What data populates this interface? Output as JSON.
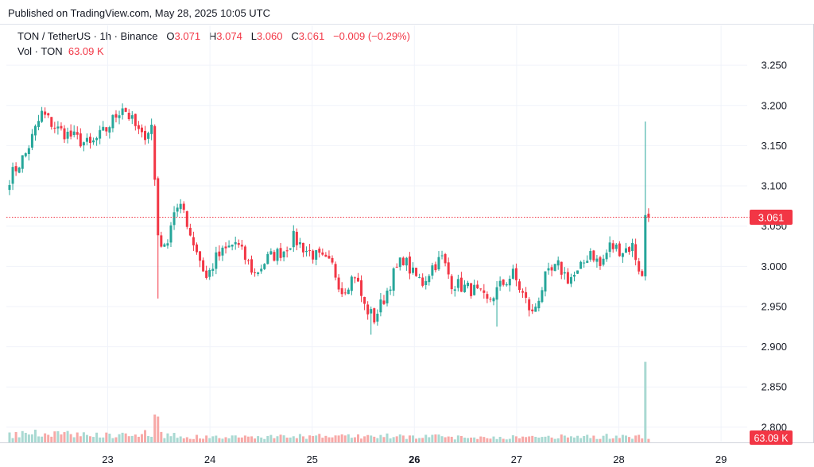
{
  "header": {
    "published": "Published on TradingView.com, May 28, 2025 10:05 UTC"
  },
  "legend": {
    "symbol": "TON / TetherUS · 1h · Binance",
    "o_label": "O",
    "o_value": "3.071",
    "h_label": "H",
    "h_value": "3.074",
    "l_label": "L",
    "l_value": "3.060",
    "c_label": "C",
    "c_value": "3.061",
    "change": "−0.009 (−0.29%)",
    "vol_label": "Vol · TON",
    "vol_value": "63.09 K"
  },
  "colors": {
    "up": "#26a69a",
    "down": "#f23645",
    "vol_up": "#a9d9d2",
    "vol_down": "#f7a9a7",
    "grid": "#f0f3fa",
    "text": "#131722"
  },
  "chart_data": {
    "type": "candlestick",
    "x_ticks": [
      {
        "label": "23",
        "day": 23
      },
      {
        "label": "24",
        "day": 24
      },
      {
        "label": "25",
        "day": 25
      },
      {
        "label": "26",
        "day": 26,
        "bold": true
      },
      {
        "label": "27",
        "day": 27
      },
      {
        "label": "28",
        "day": 28
      },
      {
        "label": "29",
        "day": 29
      }
    ],
    "y_ticks": [
      "3.250",
      "3.200",
      "3.150",
      "3.100",
      "3.050",
      "3.000",
      "2.950",
      "2.900",
      "2.850",
      "2.800"
    ],
    "ylim": [
      2.79,
      3.262
    ],
    "last_price": "3.061",
    "last_volume": "63.09 K",
    "close_anchors": [
      [
        0,
        3.11
      ],
      [
        5,
        3.14
      ],
      [
        10,
        3.19
      ],
      [
        15,
        3.17
      ],
      [
        20,
        3.16
      ],
      [
        25,
        3.15
      ],
      [
        30,
        3.17
      ],
      [
        35,
        3.2
      ],
      [
        38,
        3.18
      ],
      [
        41,
        3.16
      ],
      [
        44,
        3.175
      ],
      [
        46,
        3.04
      ],
      [
        48,
        3.02
      ],
      [
        51,
        3.07
      ],
      [
        54,
        3.07
      ],
      [
        56,
        3.04
      ],
      [
        58,
        3.02
      ],
      [
        61,
        2.985
      ],
      [
        64,
        3.01
      ],
      [
        67,
        3.02
      ],
      [
        70,
        3.03
      ],
      [
        73,
        3.01
      ],
      [
        76,
        2.99
      ],
      [
        80,
        3.01
      ],
      [
        85,
        3.02
      ],
      [
        88,
        3.035
      ],
      [
        92,
        3.02
      ],
      [
        96,
        3.01
      ],
      [
        100,
        3.0
      ],
      [
        103,
        2.97
      ],
      [
        107,
        2.99
      ],
      [
        110,
        2.95
      ],
      [
        113,
        2.935
      ],
      [
        116,
        2.96
      ],
      [
        119,
        2.99
      ],
      [
        122,
        3.01
      ],
      [
        125,
        2.99
      ],
      [
        128,
        2.98
      ],
      [
        131,
        3.0
      ],
      [
        134,
        3.01
      ],
      [
        137,
        2.98
      ],
      [
        140,
        2.975
      ],
      [
        144,
        2.97
      ],
      [
        148,
        2.955
      ],
      [
        152,
        2.975
      ],
      [
        156,
        2.99
      ],
      [
        159,
        2.965
      ],
      [
        162,
        2.94
      ],
      [
        166,
        2.985
      ],
      [
        170,
        3.0
      ],
      [
        173,
        2.985
      ],
      [
        176,
        2.99
      ],
      [
        180,
        3.02
      ],
      [
        183,
        3.0
      ],
      [
        186,
        3.025
      ],
      [
        190,
        3.02
      ],
      [
        193,
        3.025
      ],
      [
        196,
        2.985
      ],
      [
        197,
        3.065
      ],
      [
        198,
        3.061
      ]
    ],
    "spikes": [
      {
        "i": 46,
        "low": 2.96,
        "high": 3.04
      },
      {
        "i": 112,
        "low": 2.915,
        "high": 2.95
      },
      {
        "i": 151,
        "low": 2.925,
        "high": 2.96
      },
      {
        "i": 197,
        "low": 2.985,
        "high": 3.18
      }
    ],
    "volume_anchors": [
      [
        0,
        0.07
      ],
      [
        10,
        0.09
      ],
      [
        30,
        0.07
      ],
      [
        44,
        0.09
      ],
      [
        45,
        0.27
      ],
      [
        46,
        0.25
      ],
      [
        47,
        0.12
      ],
      [
        48,
        0.07
      ],
      [
        60,
        0.05
      ],
      [
        100,
        0.06
      ],
      [
        120,
        0.06
      ],
      [
        140,
        0.05
      ],
      [
        160,
        0.05
      ],
      [
        190,
        0.06
      ],
      [
        196,
        0.06
      ],
      [
        197,
        0.78
      ],
      [
        198,
        0.04
      ]
    ]
  }
}
